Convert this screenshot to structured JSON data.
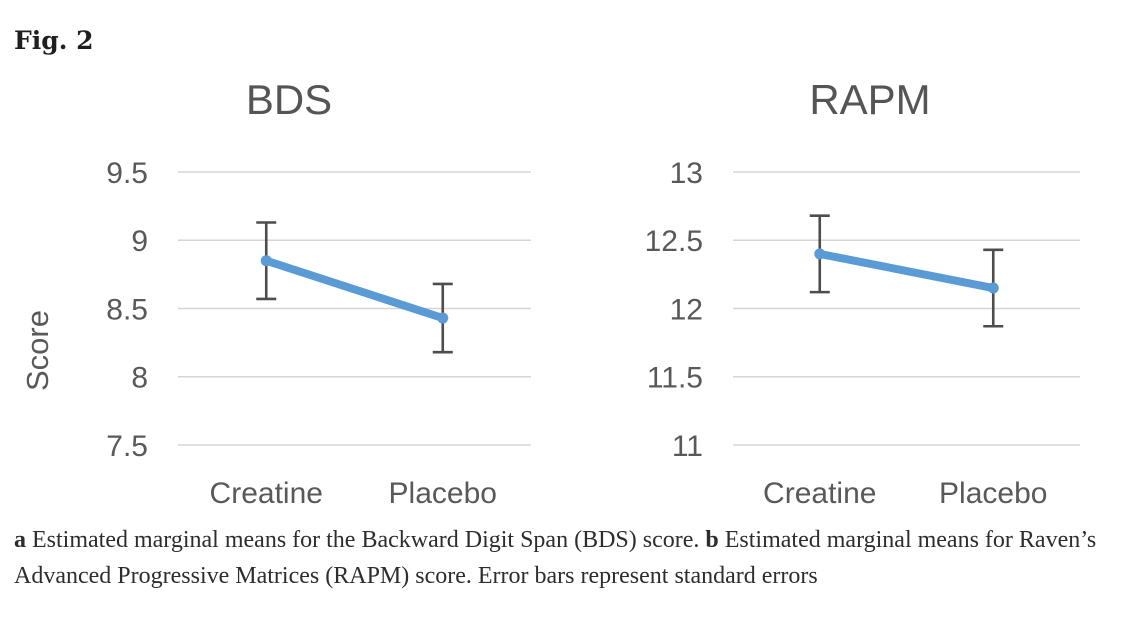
{
  "figure_label": "Fig. 2",
  "caption": {
    "parts": [
      {
        "text": "a",
        "bold": true
      },
      {
        "text": " Estimated marginal means for the Backward Digit Span (BDS) score. ",
        "bold": false
      },
      {
        "text": "b",
        "bold": true
      },
      {
        "text": " Estimated marginal means for Raven’s Advanced Progressive Matrices (RAPM) score. Error bars represent standard errors",
        "bold": false
      }
    ]
  },
  "chart_data": [
    {
      "type": "line",
      "title": "BDS",
      "xlabel": "",
      "ylabel": "Score",
      "categories": [
        "Creatine",
        "Placebo"
      ],
      "series": [
        {
          "name": "Estimated marginal mean",
          "values": [
            8.85,
            8.43
          ],
          "errors": [
            0.28,
            0.25
          ],
          "error_type": "standard error"
        }
      ],
      "yticks": [
        "9.5",
        "9",
        "8.5",
        "8",
        "7.5"
      ],
      "ylim": [
        7.5,
        9.5
      ],
      "grid": true,
      "legend": "none",
      "line_color": "#5b9bd5",
      "error_color": "#4d4d4d",
      "grid_color": "#d6d6d6",
      "text_color": "#595959",
      "title_color": "#555555"
    },
    {
      "type": "line",
      "title": "RAPM",
      "xlabel": "",
      "ylabel": "",
      "categories": [
        "Creatine",
        "Placebo"
      ],
      "series": [
        {
          "name": "Estimated marginal mean",
          "values": [
            12.4,
            12.15
          ],
          "errors": [
            0.28,
            0.28
          ],
          "error_type": "standard error"
        }
      ],
      "yticks": [
        "13",
        "12.5",
        "12",
        "11.5",
        "11"
      ],
      "ylim": [
        11,
        13
      ],
      "grid": true,
      "legend": "none",
      "line_color": "#5b9bd5",
      "error_color": "#4d4d4d",
      "grid_color": "#d6d6d6",
      "text_color": "#595959",
      "title_color": "#555555"
    }
  ]
}
